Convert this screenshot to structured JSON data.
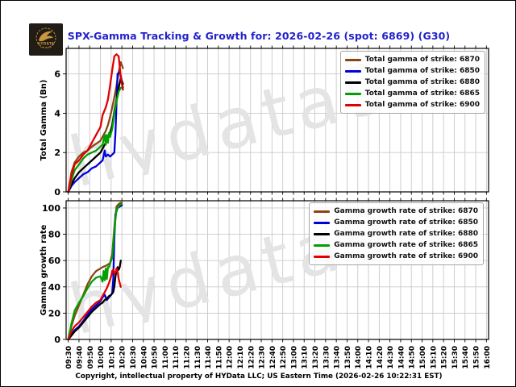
{
  "header": {
    "title": "SPX-Gamma Tracking & Growth for: 2026-02-26 (spot: 6869) (G30)",
    "title_color": "#2222cc",
    "logo": {
      "label": "HYDATA",
      "bg": "#211c15",
      "gold": "#c8963e"
    }
  },
  "footer": {
    "text": "Copyright, intellectual property of HYData LLC; US Eastern Time (2026-02-26 10:22:31 EST)"
  },
  "watermark": {
    "text": "hydata9.co",
    "color": "#e4e4e4"
  },
  "x_axis": {
    "tick_labels": [
      "09:30",
      "09:40",
      "09:50",
      "10:00",
      "10:10",
      "10:20",
      "10:30",
      "10:40",
      "10:50",
      "11:00",
      "11:10",
      "11:20",
      "11:30",
      "11:40",
      "11:50",
      "12:00",
      "12:10",
      "12:20",
      "12:30",
      "12:40",
      "12:50",
      "13:00",
      "13:10",
      "13:20",
      "13:30",
      "13:40",
      "13:50",
      "14:00",
      "14:10",
      "14:20",
      "14:30",
      "14:40",
      "14:50",
      "15:00",
      "15:10",
      "15:20",
      "15:30",
      "15:40",
      "15:50",
      "16:00"
    ]
  },
  "chart_data": [
    {
      "type": "line",
      "title": "",
      "xlabel": "",
      "ylabel": "Total Gamma (Bn)",
      "ylim": [
        0,
        7.3
      ],
      "yticks": [
        0,
        2,
        4,
        6
      ],
      "grid": true,
      "legend_position": "upper right",
      "show_x_labels": false,
      "series": [
        {
          "label": "Total gamma of strike: 6870",
          "strike": "6870",
          "color": "#8B4513",
          "x": [
            "09:30",
            "09:33",
            "09:36",
            "09:40",
            "09:44",
            "09:48",
            "09:52",
            "09:56",
            "10:00",
            "10:02",
            "10:05",
            "10:07",
            "10:09",
            "10:11",
            "10:13",
            "10:15",
            "10:17",
            "10:19",
            "10:21"
          ],
          "y": [
            0,
            1.0,
            1.5,
            1.8,
            2.0,
            2.1,
            2.3,
            2.45,
            2.6,
            2.8,
            3.1,
            3.4,
            3.8,
            4.3,
            4.8,
            5.4,
            6.1,
            6.6,
            6.3
          ]
        },
        {
          "label": "Total gamma of strike: 6850",
          "strike": "6850",
          "color": "#0000dd",
          "x": [
            "09:30",
            "09:33",
            "09:36",
            "09:40",
            "09:44",
            "09:48",
            "09:52",
            "09:56",
            "10:00",
            "10:02",
            "10:04",
            "10:05",
            "10:07",
            "10:09",
            "10:11",
            "10:13",
            "10:14",
            "10:15",
            "10:16",
            "10:18",
            "10:19",
            "10:21"
          ],
          "y": [
            0,
            0.3,
            0.5,
            0.7,
            0.9,
            1.0,
            1.2,
            1.3,
            1.5,
            1.6,
            2.1,
            1.8,
            1.9,
            1.8,
            1.9,
            2.0,
            3.0,
            4.5,
            6.0,
            6.1,
            5.9,
            5.3
          ]
        },
        {
          "label": "Total gamma of strike: 6880",
          "strike": "6880",
          "color": "#000000",
          "x": [
            "09:30",
            "09:33",
            "09:36",
            "09:40",
            "09:44",
            "09:48",
            "09:52",
            "09:56",
            "10:00",
            "10:02",
            "10:05",
            "10:07",
            "10:09",
            "10:11",
            "10:13",
            "10:15",
            "10:17",
            "10:19",
            "10:21"
          ],
          "y": [
            0,
            0.4,
            0.7,
            1.0,
            1.2,
            1.4,
            1.6,
            1.8,
            2.0,
            2.2,
            2.5,
            2.7,
            3.0,
            3.4,
            4.1,
            4.7,
            5.3,
            5.8,
            5.5
          ]
        },
        {
          "label": "Total gamma of strike: 6865",
          "strike": "6865",
          "color": "#00a000",
          "x": [
            "09:30",
            "09:33",
            "09:36",
            "09:40",
            "09:44",
            "09:48",
            "09:52",
            "09:56",
            "10:00",
            "10:02",
            "10:04",
            "10:05",
            "10:06",
            "10:07",
            "10:08",
            "10:09",
            "10:11",
            "10:13",
            "10:15",
            "10:17",
            "10:19",
            "10:21"
          ],
          "y": [
            0,
            0.6,
            1.1,
            1.4,
            1.7,
            1.9,
            2.0,
            2.1,
            2.3,
            2.4,
            2.9,
            2.4,
            2.9,
            2.5,
            3.0,
            2.8,
            3.2,
            4.0,
            4.6,
            5.1,
            5.3,
            5.3
          ]
        },
        {
          "label": "Total gamma of strike: 6900",
          "strike": "6900",
          "color": "#e00000",
          "x": [
            "09:30",
            "09:33",
            "09:36",
            "09:40",
            "09:44",
            "09:48",
            "09:52",
            "09:56",
            "10:00",
            "10:02",
            "10:05",
            "10:07",
            "10:09",
            "10:11",
            "10:13",
            "10:15",
            "10:17",
            "10:19",
            "10:21"
          ],
          "y": [
            0,
            0.8,
            1.4,
            1.6,
            1.9,
            2.1,
            2.5,
            2.9,
            3.3,
            3.9,
            4.3,
            4.7,
            5.4,
            6.2,
            6.9,
            7.0,
            6.9,
            5.8,
            5.2
          ]
        }
      ]
    },
    {
      "type": "line",
      "title": "",
      "xlabel": "",
      "ylabel": "Gamma growth rate",
      "ylim": [
        0,
        105.5
      ],
      "yticks": [
        0,
        20,
        40,
        60,
        80,
        100
      ],
      "grid": true,
      "legend_position": "upper right",
      "show_x_labels": true,
      "series": [
        {
          "label": "Gamma growth rate of strike: 6870",
          "strike": "6870",
          "color": "#8B4513",
          "x": [
            "09:30",
            "09:33",
            "09:36",
            "09:40",
            "09:44",
            "09:48",
            "09:52",
            "09:56",
            "10:00",
            "10:02",
            "10:05",
            "10:07",
            "10:09",
            "10:11",
            "10:13",
            "10:15",
            "10:17",
            "10:19",
            "10:20"
          ],
          "y": [
            0,
            10,
            18,
            26,
            34,
            42,
            48,
            52,
            54,
            55,
            56,
            57,
            58,
            65,
            85,
            101,
            103,
            104,
            104
          ]
        },
        {
          "label": "Gamma growth rate of strike: 6850",
          "strike": "6850",
          "color": "#0000dd",
          "x": [
            "09:30",
            "09:33",
            "09:36",
            "09:40",
            "09:44",
            "09:48",
            "09:52",
            "09:56",
            "10:00",
            "10:02",
            "10:04",
            "10:06",
            "10:08",
            "10:10",
            "10:11",
            "10:12",
            "10:13",
            "10:14",
            "10:16",
            "10:18",
            "10:20"
          ],
          "y": [
            0,
            4,
            7,
            10,
            14,
            19,
            23,
            26,
            29,
            32,
            34,
            30,
            32,
            34,
            35,
            46,
            77,
            95,
            100,
            101,
            102
          ]
        },
        {
          "label": "Gamma growth rate of strike: 6880",
          "strike": "6880",
          "color": "#000000",
          "x": [
            "09:30",
            "09:33",
            "09:36",
            "09:40",
            "09:44",
            "09:48",
            "09:52",
            "09:56",
            "10:00",
            "10:02",
            "10:04",
            "10:06",
            "10:08",
            "10:10",
            "10:12",
            "10:13",
            "10:14",
            "10:15",
            "10:16",
            "10:17",
            "10:18",
            "10:19"
          ],
          "y": [
            0,
            3,
            6,
            9,
            13,
            17,
            21,
            24,
            27,
            28,
            30,
            31,
            33,
            34,
            36,
            40,
            48,
            52,
            55,
            53,
            55,
            60
          ]
        },
        {
          "label": "Gamma growth rate of strike: 6865",
          "strike": "6865",
          "color": "#00a000",
          "x": [
            "09:30",
            "09:33",
            "09:36",
            "09:40",
            "09:44",
            "09:48",
            "09:52",
            "09:56",
            "10:00",
            "10:02",
            "10:03",
            "10:04",
            "10:05",
            "10:06",
            "10:07",
            "10:08",
            "10:09",
            "10:11",
            "10:13",
            "10:15",
            "10:17",
            "10:19",
            "10:20"
          ],
          "y": [
            0,
            12,
            22,
            28,
            33,
            39,
            44,
            47,
            48,
            44,
            52,
            45,
            54,
            46,
            55,
            55,
            58,
            62,
            83,
            99,
            101,
            103,
            103
          ]
        },
        {
          "label": "Gamma growth rate of strike: 6900",
          "strike": "6900",
          "color": "#e00000",
          "x": [
            "09:30",
            "09:33",
            "09:36",
            "09:40",
            "09:44",
            "09:48",
            "09:52",
            "09:56",
            "10:00",
            "10:02",
            "10:04",
            "10:06",
            "10:08",
            "10:10",
            "10:11",
            "10:12",
            "10:13",
            "10:14",
            "10:15",
            "10:16",
            "10:17",
            "10:19"
          ],
          "y": [
            0,
            6,
            10,
            13,
            17,
            21,
            25,
            28,
            30,
            33,
            36,
            39,
            43,
            48,
            52,
            53,
            50,
            51,
            54,
            52,
            46,
            40
          ]
        }
      ]
    }
  ]
}
